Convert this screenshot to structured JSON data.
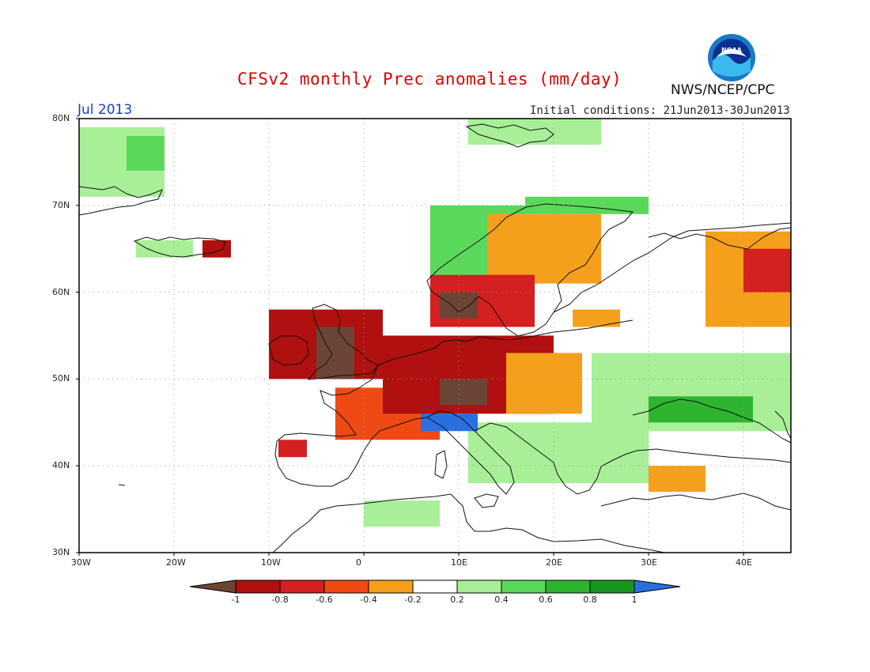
{
  "header": {
    "title": "CFSv2 monthly Prec anomalies (mm/day)",
    "agency": "NWS/NCEP/CPC",
    "logo_text": "NOAA",
    "month": "Jul 2013",
    "initial_conditions": "Initial conditions: 21Jun2013-30Jun2013"
  },
  "map": {
    "lon_range": [
      -30,
      45
    ],
    "lat_range": [
      30,
      80
    ],
    "lon_ticks": [
      {
        "value": -30,
        "label": "30W"
      },
      {
        "value": -20,
        "label": "20W"
      },
      {
        "value": -10,
        "label": "10W"
      },
      {
        "value": 0,
        "label": "0"
      },
      {
        "value": 10,
        "label": "10E"
      },
      {
        "value": 20,
        "label": "20E"
      },
      {
        "value": 30,
        "label": "30E"
      },
      {
        "value": 40,
        "label": "40E"
      }
    ],
    "lat_ticks": [
      {
        "value": 30,
        "label": "30N"
      },
      {
        "value": 40,
        "label": "40N"
      },
      {
        "value": 50,
        "label": "50N"
      },
      {
        "value": 60,
        "label": "60N"
      },
      {
        "value": 70,
        "label": "70N"
      },
      {
        "value": 80,
        "label": "80N"
      }
    ],
    "grid": "dotted"
  },
  "colorbar": {
    "labels": [
      "-1",
      "-0.8",
      "-0.6",
      "-0.4",
      "-0.2",
      "0.2",
      "0.4",
      "0.6",
      "0.8",
      "1"
    ],
    "colors": [
      "#6b4436",
      "#b01010",
      "#d42020",
      "#f04a14",
      "#f5a01c",
      "#ffffff",
      "#a8ef98",
      "#5ad85a",
      "#2fb42f",
      "#16961e",
      "#2a6fe0"
    ]
  },
  "anomaly_regions": [
    {
      "name": "greenland-east",
      "color": "#a8ef98",
      "lon": [
        -30,
        -21
      ],
      "lat": [
        71,
        79
      ]
    },
    {
      "name": "greenland-east-2",
      "color": "#5ad85a",
      "lon": [
        -25,
        -21
      ],
      "lat": [
        74,
        78
      ]
    },
    {
      "name": "iceland-green",
      "color": "#a8ef98",
      "lon": [
        -24,
        -18
      ],
      "lat": [
        64,
        66
      ]
    },
    {
      "name": "iceland-red",
      "color": "#b01010",
      "lon": [
        -17,
        -14
      ],
      "lat": [
        64,
        66
      ]
    },
    {
      "name": "svalbard",
      "color": "#a8ef98",
      "lon": [
        11,
        25
      ],
      "lat": [
        77,
        80
      ]
    },
    {
      "name": "norway-coast",
      "color": "#5ad85a",
      "lon": [
        7,
        17
      ],
      "lat": [
        62,
        70
      ]
    },
    {
      "name": "lapland-green",
      "color": "#5ad85a",
      "lon": [
        17,
        30
      ],
      "lat": [
        69,
        71
      ]
    },
    {
      "name": "scandinavia-orange",
      "color": "#f5a01c",
      "lon": [
        13,
        25
      ],
      "lat": [
        61,
        69
      ]
    },
    {
      "name": "scandinavia-red",
      "color": "#d42020",
      "lon": [
        7,
        18
      ],
      "lat": [
        56,
        62
      ]
    },
    {
      "name": "scandinavia-brown",
      "color": "#6b4436",
      "lon": [
        8,
        12
      ],
      "lat": [
        57,
        60
      ]
    },
    {
      "name": "uk-red",
      "color": "#b01010",
      "lon": [
        -10,
        2
      ],
      "lat": [
        50,
        58
      ]
    },
    {
      "name": "uk-brown",
      "color": "#6b4436",
      "lon": [
        -5,
        -1
      ],
      "lat": [
        50,
        56
      ]
    },
    {
      "name": "ireland-red",
      "color": "#b01010",
      "lon": [
        -10,
        -6
      ],
      "lat": [
        51,
        54
      ]
    },
    {
      "name": "france-orange",
      "color": "#f04a14",
      "lon": [
        -3,
        8
      ],
      "lat": [
        43,
        49
      ]
    },
    {
      "name": "central-eu-red",
      "color": "#b01010",
      "lon": [
        2,
        20
      ],
      "lat": [
        46,
        55
      ]
    },
    {
      "name": "central-eu-brown",
      "color": "#6b4436",
      "lon": [
        8,
        13
      ],
      "lat": [
        47,
        50
      ]
    },
    {
      "name": "east-eu-orange",
      "color": "#f5a01c",
      "lon": [
        15,
        23
      ],
      "lat": [
        46,
        53
      ]
    },
    {
      "name": "baltic-orange",
      "color": "#f5a01c",
      "lon": [
        22,
        27
      ],
      "lat": [
        56,
        58
      ]
    },
    {
      "name": "russia-orange",
      "color": "#f5a01c",
      "lon": [
        36,
        45
      ],
      "lat": [
        56,
        67
      ]
    },
    {
      "name": "russia-red",
      "color": "#d42020",
      "lon": [
        40,
        45
      ],
      "lat": [
        60,
        65
      ]
    },
    {
      "name": "ukraine-green",
      "color": "#a8ef98",
      "lon": [
        24,
        45
      ],
      "lat": [
        44,
        53
      ]
    },
    {
      "name": "ukraine-darkgreen",
      "color": "#2fb42f",
      "lon": [
        30,
        41
      ],
      "lat": [
        45,
        48
      ]
    },
    {
      "name": "balkans-green",
      "color": "#a8ef98",
      "lon": [
        11,
        30
      ],
      "lat": [
        38,
        45
      ]
    },
    {
      "name": "iberia-red",
      "color": "#d42020",
      "lon": [
        -9,
        -6
      ],
      "lat": [
        41,
        43
      ]
    },
    {
      "name": "africa-green",
      "color": "#a8ef98",
      "lon": [
        0,
        8
      ],
      "lat": [
        33,
        36
      ]
    },
    {
      "name": "turkey-orange",
      "color": "#f5a01c",
      "lon": [
        30,
        36
      ],
      "lat": [
        37,
        40
      ]
    },
    {
      "name": "alps-blue",
      "color": "#2a6fe0",
      "lon": [
        6,
        12
      ],
      "lat": [
        44,
        46
      ]
    }
  ]
}
